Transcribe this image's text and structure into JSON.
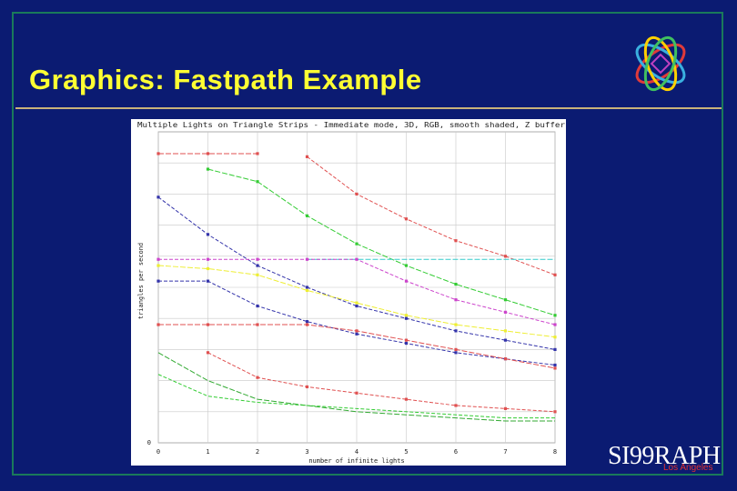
{
  "slide": {
    "title": "Graphics: Fastpath Example",
    "brand": "SI99RAPH",
    "brand_sub": "Los Angeles",
    "colors": {
      "background": "#0b1b72",
      "title": "#ffff33",
      "rule": "#c9b27a",
      "brand_sub": "#e03030"
    }
  },
  "chart_data": {
    "type": "line",
    "title": "Multiple Lights on Triangle Strips - Immediate mode, 3D, RGB, smooth shaded, Z buffer",
    "xlabel": "number of infinite lights",
    "ylabel": "triangles per second",
    "x": [
      0,
      1,
      2,
      3,
      4,
      5,
      6,
      7,
      8
    ],
    "xlim": [
      0,
      8
    ],
    "ylim": [
      0,
      1
    ],
    "ytick_labels": [
      "0"
    ],
    "grid": true,
    "series": [
      {
        "color": "#e05050",
        "marker": "x",
        "values": [
          0.93,
          0.93,
          0.93,
          null,
          null,
          null,
          null,
          null,
          null
        ]
      },
      {
        "color": "#e05050",
        "marker": "x",
        "values": [
          null,
          null,
          null,
          0.92,
          0.8,
          0.72,
          0.65,
          0.6,
          0.54
        ]
      },
      {
        "color": "#33cc33",
        "marker": "x",
        "values": [
          null,
          0.88,
          0.84,
          0.73,
          0.64,
          0.57,
          0.51,
          0.46,
          0.41
        ]
      },
      {
        "color": "#3333aa",
        "marker": "x",
        "values": [
          0.79,
          0.67,
          0.57,
          0.5,
          0.44,
          0.4,
          0.36,
          0.33,
          0.3
        ]
      },
      {
        "color": "#33cccc",
        "marker": "none",
        "values": [
          null,
          null,
          null,
          0.59,
          0.59,
          0.59,
          0.59,
          0.59,
          0.59
        ]
      },
      {
        "color": "#cc44cc",
        "marker": "x",
        "values": [
          0.59,
          0.59,
          0.59,
          0.59,
          0.59,
          0.52,
          0.46,
          0.42,
          0.38
        ]
      },
      {
        "color": "#eeee33",
        "marker": "x",
        "values": [
          0.57,
          0.56,
          0.54,
          0.49,
          0.45,
          0.41,
          0.38,
          0.36,
          0.34
        ]
      },
      {
        "color": "#3333aa",
        "marker": "x",
        "values": [
          0.52,
          0.52,
          0.44,
          0.39,
          0.35,
          0.32,
          0.29,
          0.27,
          0.25
        ]
      },
      {
        "color": "#e05050",
        "marker": "x",
        "values": [
          0.38,
          0.38,
          0.38,
          0.38,
          0.36,
          0.33,
          0.3,
          0.27,
          0.24
        ]
      },
      {
        "color": "#e05050",
        "marker": "x",
        "values": [
          null,
          0.29,
          0.21,
          0.18,
          0.16,
          0.14,
          0.12,
          0.11,
          0.1
        ]
      },
      {
        "color": "#33aa33",
        "marker": "none",
        "values": [
          0.29,
          0.2,
          0.14,
          0.12,
          0.1,
          0.09,
          0.08,
          0.07,
          0.07
        ]
      },
      {
        "color": "#33cc33",
        "marker": "none",
        "values": [
          0.22,
          0.15,
          0.13,
          0.12,
          0.11,
          0.1,
          0.09,
          0.08,
          0.08
        ]
      }
    ]
  }
}
